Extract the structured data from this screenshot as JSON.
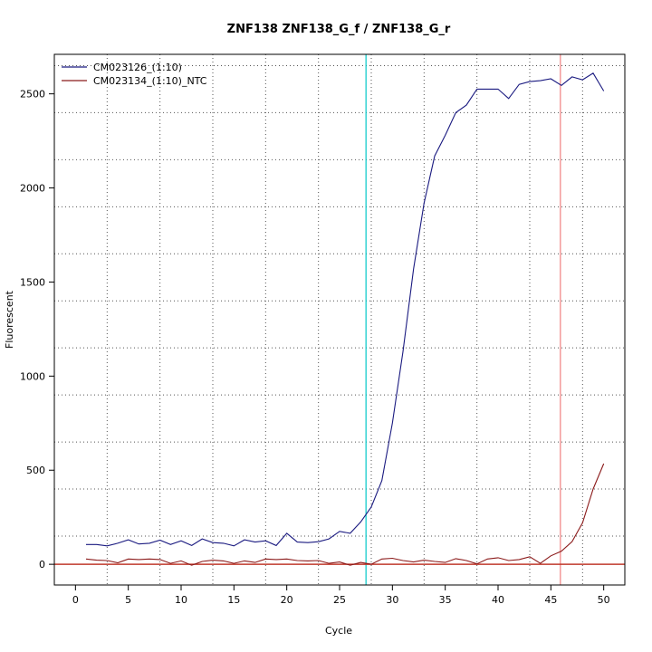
{
  "chart_data": {
    "type": "line",
    "title": "ZNF138  ZNF138_G_f / ZNF138_G_r",
    "xlabel": "Cycle",
    "ylabel": "Fluorescent",
    "xlim": [
      -2,
      52
    ],
    "ylim": [
      -110,
      2710
    ],
    "x_ticks": [
      0,
      5,
      10,
      15,
      20,
      25,
      30,
      35,
      40,
      45,
      50
    ],
    "y_ticks": [
      0,
      500,
      1000,
      1500,
      2000,
      2500
    ],
    "x_grid": [
      3,
      8,
      13,
      18,
      23,
      28,
      33,
      38,
      43,
      48
    ],
    "y_grid": [
      150,
      400,
      650,
      900,
      1150,
      1400,
      1650,
      1900,
      2150,
      2400,
      2650
    ],
    "grid": true,
    "legend_position": "top-left",
    "threshold": {
      "value": 0,
      "color": "#c0392b"
    },
    "vlines": [
      {
        "x": 27.5,
        "color": "#00c8c8"
      },
      {
        "x": 45.9,
        "color": "#f08080"
      }
    ],
    "series": [
      {
        "name": "CM023126_(1:10)",
        "color": "#1a1a80",
        "x": [
          1,
          2,
          3,
          4,
          5,
          6,
          7,
          8,
          9,
          10,
          11,
          12,
          13,
          14,
          15,
          16,
          17,
          18,
          19,
          20,
          21,
          22,
          23,
          24,
          25,
          26,
          27,
          28,
          29,
          30,
          31,
          32,
          33,
          34,
          35,
          36,
          37,
          38,
          39,
          40,
          41,
          42,
          43,
          44,
          45,
          46,
          47,
          48,
          49,
          50
        ],
        "values": [
          105,
          105,
          98,
          112,
          130,
          108,
          112,
          128,
          105,
          125,
          100,
          135,
          115,
          112,
          98,
          130,
          118,
          125,
          100,
          165,
          118,
          115,
          120,
          135,
          175,
          165,
          225,
          305,
          445,
          750,
          1130,
          1570,
          1920,
          2170,
          2280,
          2400,
          2440,
          2525,
          2525,
          2525,
          2475,
          2550,
          2565,
          2570,
          2580,
          2545,
          2590,
          2575,
          2610,
          2515
        ]
      },
      {
        "name": "CM023134_(1:10)_NTC",
        "color": "#8b1a1a",
        "x": [
          1,
          2,
          3,
          4,
          5,
          6,
          7,
          8,
          9,
          10,
          11,
          12,
          13,
          14,
          15,
          16,
          17,
          18,
          19,
          20,
          21,
          22,
          23,
          24,
          25,
          26,
          27,
          28,
          29,
          30,
          31,
          32,
          33,
          34,
          35,
          36,
          37,
          38,
          39,
          40,
          41,
          42,
          43,
          44,
          45,
          46,
          47,
          48,
          49,
          50
        ],
        "values": [
          28,
          22,
          20,
          8,
          28,
          25,
          28,
          25,
          5,
          18,
          -5,
          15,
          22,
          18,
          5,
          18,
          10,
          28,
          25,
          28,
          20,
          18,
          20,
          5,
          12,
          -5,
          10,
          0,
          28,
          32,
          20,
          12,
          22,
          15,
          10,
          30,
          20,
          2,
          28,
          35,
          20,
          25,
          40,
          5,
          45,
          70,
          120,
          220,
          400,
          535
        ]
      }
    ]
  }
}
